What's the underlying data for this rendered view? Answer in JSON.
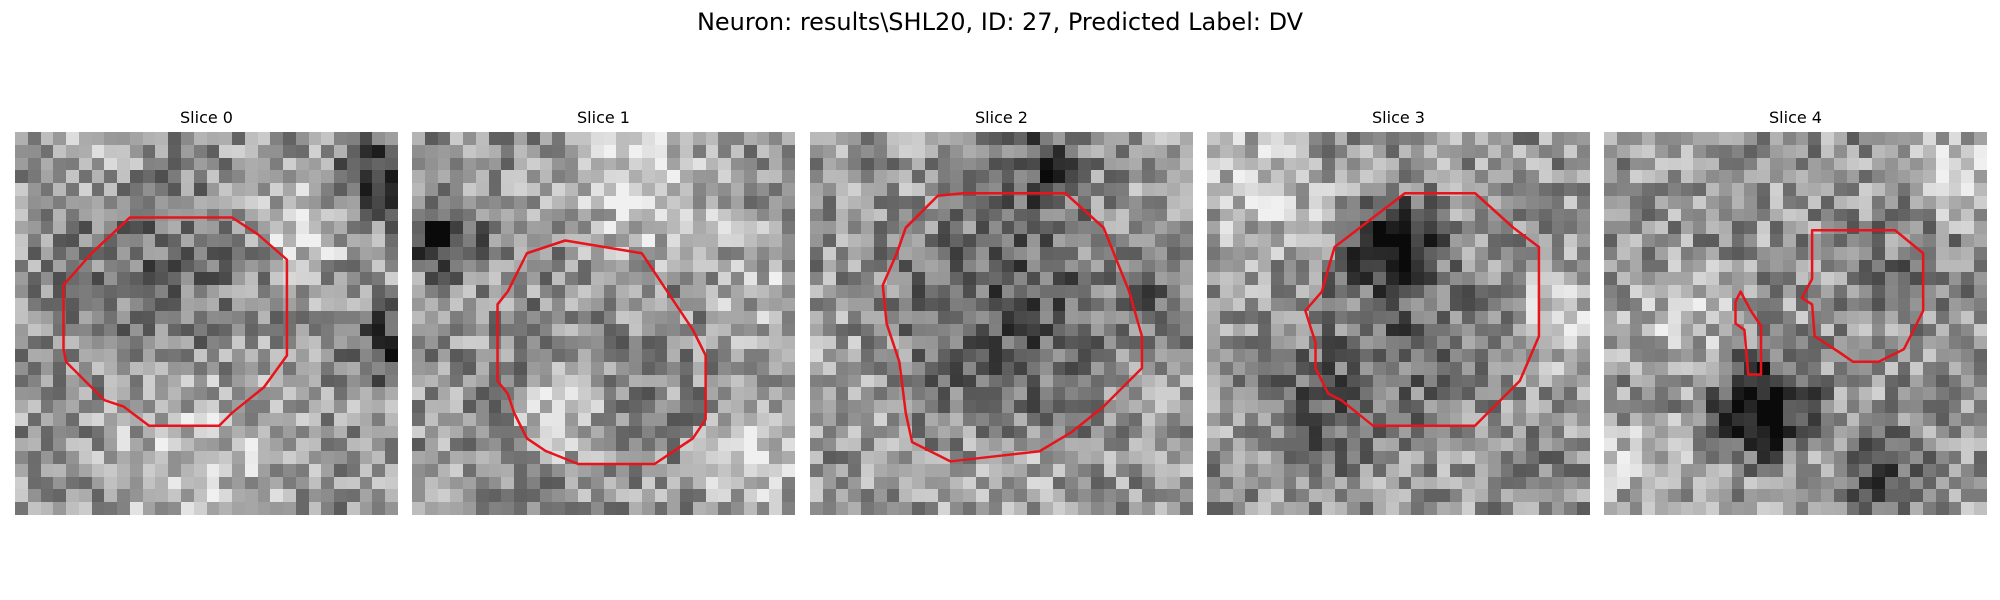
{
  "figure": {
    "title": "Neuron: results\\SHL20, ID: 27, Predicted Label: DV"
  },
  "style": {
    "contour_color": "#e8141c",
    "colormap": "gray"
  },
  "panels": [
    {
      "title": "Slice 0"
    },
    {
      "title": "Slice 1"
    },
    {
      "title": "Slice 2"
    },
    {
      "title": "Slice 3"
    },
    {
      "title": "Slice 4"
    }
  ]
}
